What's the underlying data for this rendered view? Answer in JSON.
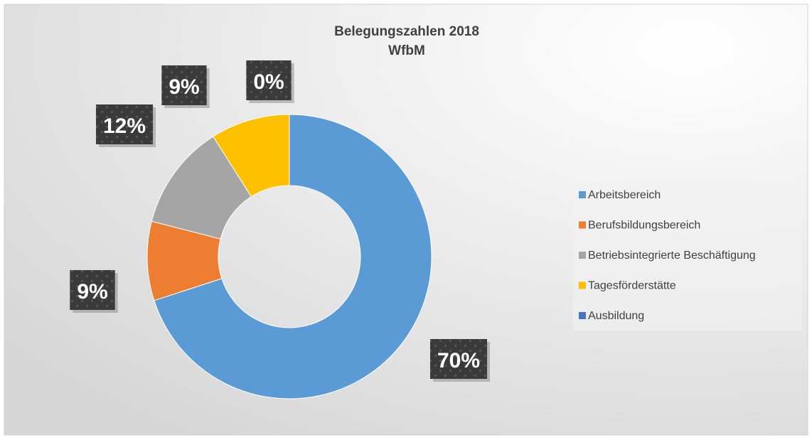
{
  "chart_data": {
    "type": "donut",
    "title": "Belegungszahlen 2018",
    "subtitle": "WfbM",
    "categories": [
      "Arbeitsbereich",
      "Berufsbildungsbereich",
      "Betriebsintegrierte Beschäftigung",
      "Tagesförderstätte",
      "Ausbildung"
    ],
    "values": [
      70,
      9,
      12,
      9,
      0
    ],
    "value_labels": [
      "70%",
      "9%",
      "12%",
      "9%",
      "0%"
    ],
    "colors": [
      "#5b9bd5",
      "#ed7d31",
      "#a5a5a5",
      "#ffc000",
      "#4472c4"
    ],
    "legend": "right"
  }
}
